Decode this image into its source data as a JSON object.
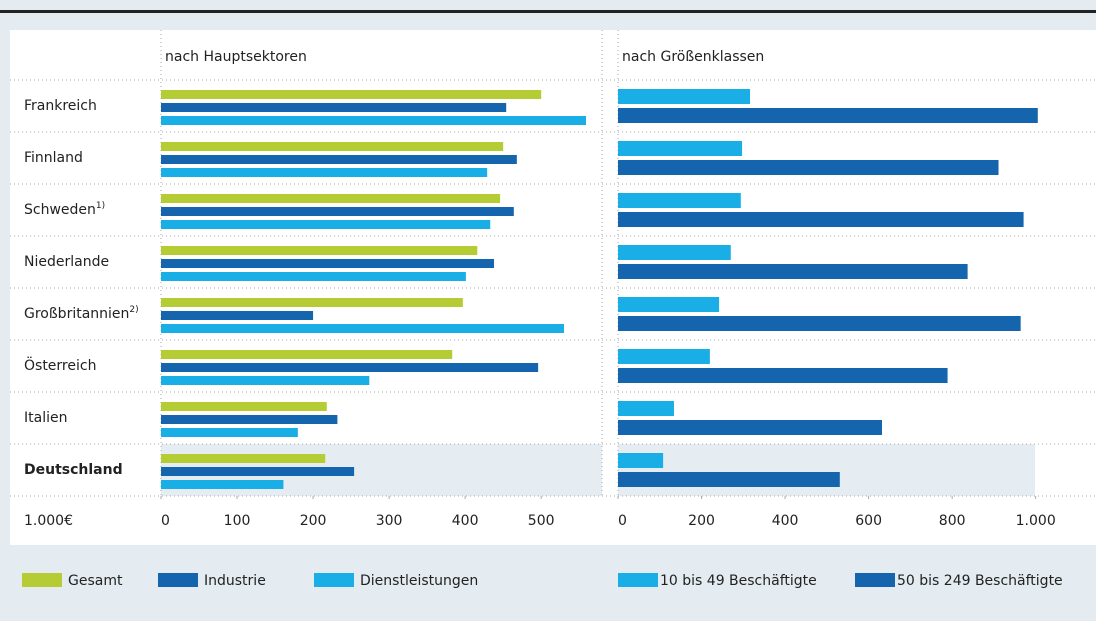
{
  "categories": [
    "Frankreich",
    "Finnland",
    "Schweden",
    "Niederlande",
    "Großbritannien",
    "Österreich",
    "Italien",
    "Deutschland"
  ],
  "category_notes": [
    null,
    null,
    "1)",
    null,
    "2)",
    null,
    null,
    null
  ],
  "unit": "1.000€",
  "chart_data": [
    {
      "type": "bar",
      "orientation": "horizontal",
      "title": "nach Hauptsektoren",
      "series": [
        {
          "name": "Gesamt",
          "color": "#b5cc34",
          "values": [
            500,
            450,
            446,
            416,
            397,
            383,
            218,
            216
          ]
        },
        {
          "name": "Industrie",
          "color": "#1565ae",
          "values": [
            454,
            468,
            464,
            438,
            200,
            496,
            232,
            254
          ]
        },
        {
          "name": "Dienstleistungen",
          "color": "#1aaee6",
          "values": [
            559,
            429,
            433,
            401,
            530,
            274,
            180,
            161
          ]
        }
      ],
      "xlim": [
        0,
        580
      ],
      "xticks": [
        0,
        100,
        200,
        300,
        400,
        500
      ]
    },
    {
      "type": "bar",
      "orientation": "horizontal",
      "title": "nach Größenklassen",
      "series": [
        {
          "name": "10 bis 49 Beschäftigte",
          "color": "#1aaee6",
          "values": [
            316,
            297,
            294,
            270,
            242,
            220,
            134,
            108
          ]
        },
        {
          "name": "50 bis 249 Beschäftigte",
          "color": "#1565ae",
          "values": [
            1005,
            911,
            971,
            837,
            964,
            789,
            632,
            531
          ]
        }
      ],
      "xlim": [
        0,
        1130
      ],
      "xticks": [
        0,
        200,
        400,
        600,
        800,
        {
          "value": 1000,
          "label": "1.000"
        }
      ]
    }
  ]
}
